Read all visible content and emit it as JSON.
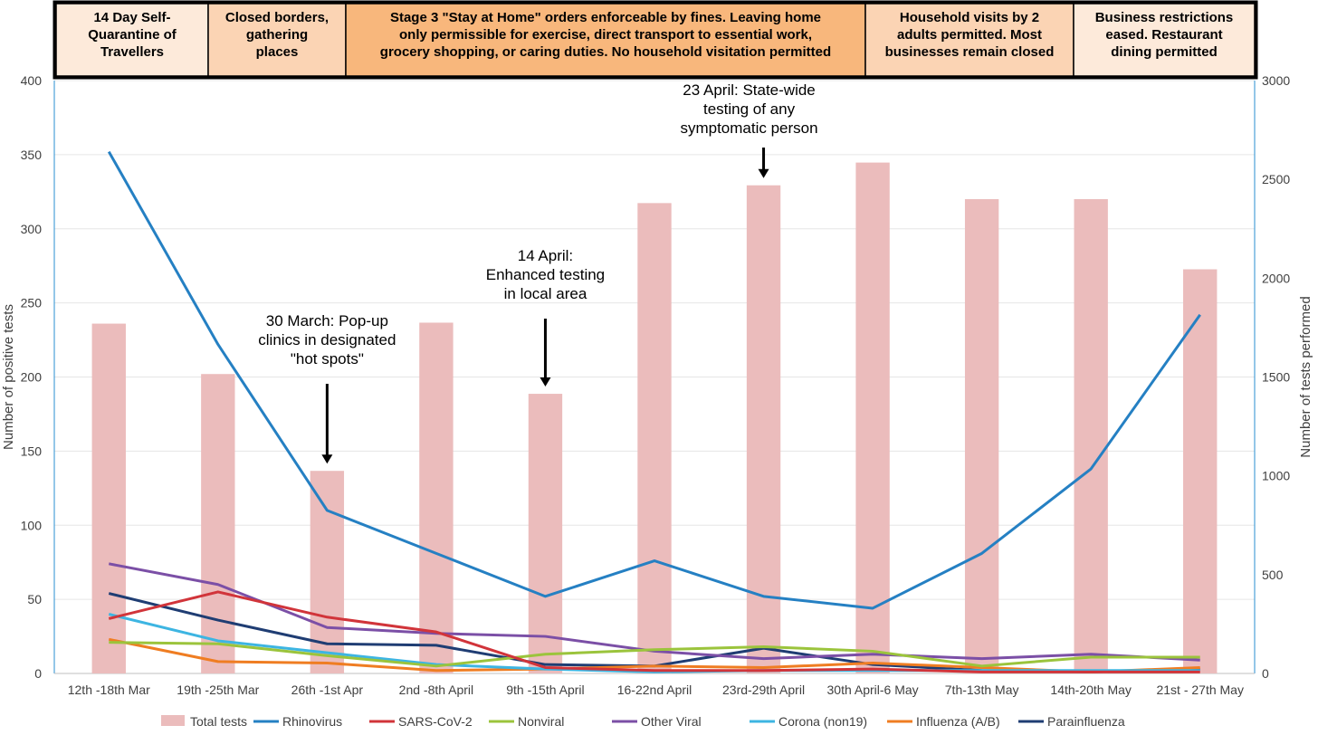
{
  "phases": [
    {
      "text": "14 Day Self- Quarantine of Travellers",
      "color": "#fdeada"
    },
    {
      "text": "Closed borders, gathering places",
      "color": "#fbd4b4"
    },
    {
      "text": "Stage 3 \"Stay at Home\" orders enforceable by fines.  Leaving home only permissible for exercise, direct transport to essential work, grocery shopping, or caring duties. No household visitation permitted",
      "color": "#f8b77c"
    },
    {
      "text": "Household visits by 2 adults permitted. Most businesses remain closed",
      "color": "#fbd4b4"
    },
    {
      "text": "Business restrictions eased. Restaurant dining permitted",
      "color": "#fdeada"
    }
  ],
  "annotations": [
    {
      "text": "30 March: Pop-up clinics in designated \"hot spots\"",
      "category_index": 2
    },
    {
      "text": "14 April: Enhanced testing in local area",
      "category_index": 4
    },
    {
      "text": "23 April: State-wide testing of any symptomatic person",
      "category_index": 6
    }
  ],
  "chart_data": {
    "type": "bar",
    "categories": [
      "12th -18th Mar",
      "19th -25th Mar",
      "26th -1st Apr",
      "2nd -8th April",
      "9th -15th April",
      "16-22nd April",
      "23rd-29th April",
      "30th April-6 May",
      "7th-13th May",
      "14th-20th May",
      "21st - 27th May"
    ],
    "ylabel": "Number of positive tests",
    "ylabel_right": "Number of tests performed",
    "ylim": [
      0,
      400
    ],
    "yticks": [
      0,
      50,
      100,
      150,
      200,
      250,
      300,
      350,
      400
    ],
    "ylim_right": [
      0,
      3000
    ],
    "yticks_right": [
      0,
      500,
      1000,
      1500,
      2000,
      2500,
      3000
    ],
    "grid": true,
    "legend_position": "bottom",
    "bar_series": {
      "name": "Total tests",
      "color": "#ebbcbc",
      "axis": "right",
      "values": [
        1770,
        1515,
        1025,
        1775,
        1415,
        2380,
        2470,
        2585,
        2400,
        2400,
        2045
      ]
    },
    "series": [
      {
        "name": "Rhinovirus",
        "color": "#2580c3",
        "values": [
          352,
          222,
          110,
          81,
          52,
          76,
          52,
          44,
          81,
          138,
          242
        ]
      },
      {
        "name": "SARS-CoV-2",
        "color": "#d1343a",
        "values": [
          37,
          55,
          38,
          28,
          4,
          2,
          2,
          3,
          1,
          1,
          1
        ]
      },
      {
        "name": "Nonviral",
        "color": "#9bc43c",
        "values": [
          21,
          20,
          12,
          5,
          13,
          16,
          18,
          15,
          5,
          11,
          11
        ]
      },
      {
        "name": "Other Viral",
        "color": "#7b4fa6",
        "values": [
          74,
          60,
          31,
          27,
          25,
          15,
          10,
          13,
          10,
          13,
          9
        ]
      },
      {
        "name": "Corona (non19)",
        "color": "#3db5e2",
        "values": [
          40,
          22,
          14,
          6,
          3,
          1,
          2,
          2,
          2,
          2,
          2
        ]
      },
      {
        "name": "Influenza (A/B)",
        "color": "#ef7d22",
        "values": [
          23,
          8,
          7,
          2,
          3,
          5,
          4,
          7,
          4,
          1,
          4
        ]
      },
      {
        "name": "Parainfluenza",
        "color": "#1f3d73",
        "values": [
          54,
          36,
          20,
          19,
          6,
          5,
          17,
          6,
          2,
          1,
          3
        ]
      }
    ]
  }
}
